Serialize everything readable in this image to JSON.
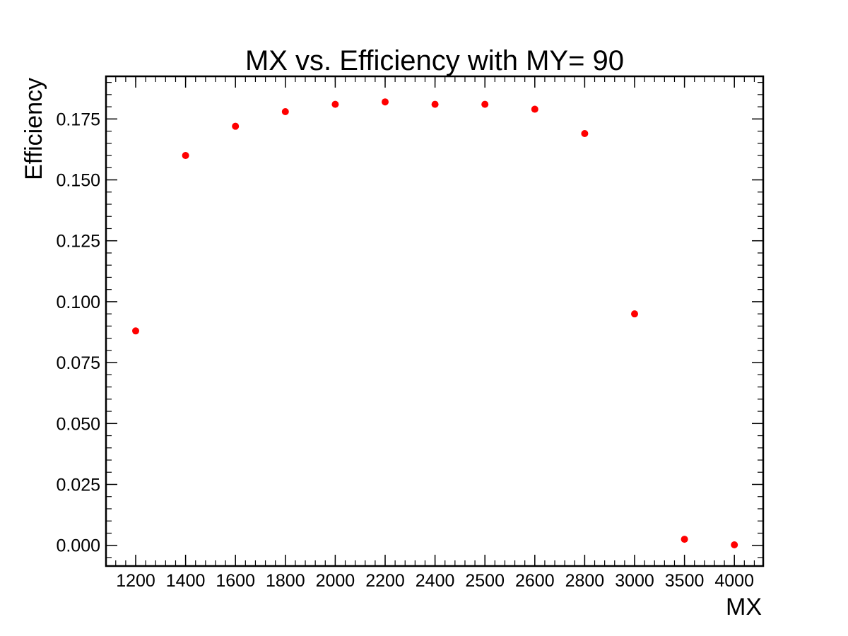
{
  "chart_data": {
    "type": "scatter",
    "title": "MX vs. Efficiency with MY= 90",
    "xlabel": "MX",
    "ylabel": "Efficiency",
    "x_axis_kind": "categorical",
    "categories": [
      "1200",
      "1400",
      "1600",
      "1800",
      "2000",
      "2200",
      "2400",
      "2500",
      "2600",
      "2800",
      "3000",
      "3500",
      "4000"
    ],
    "y_ticks": [
      "0.000",
      "0.025",
      "0.050",
      "0.075",
      "0.100",
      "0.125",
      "0.150",
      "0.175"
    ],
    "ylim": [
      -0.0085,
      0.1925
    ],
    "grid": false,
    "legend": "none",
    "marker_color": "#ff0000",
    "series": [
      {
        "x": [
          "1200",
          "1400",
          "1600",
          "1800",
          "2000",
          "2200",
          "2400",
          "2500",
          "2600",
          "2800",
          "3000",
          "3500",
          "4000"
        ],
        "values": [
          0.088,
          0.16,
          0.172,
          0.178,
          0.181,
          0.182,
          0.181,
          0.181,
          0.179,
          0.169,
          0.095,
          0.0025,
          0.0002
        ]
      }
    ]
  }
}
